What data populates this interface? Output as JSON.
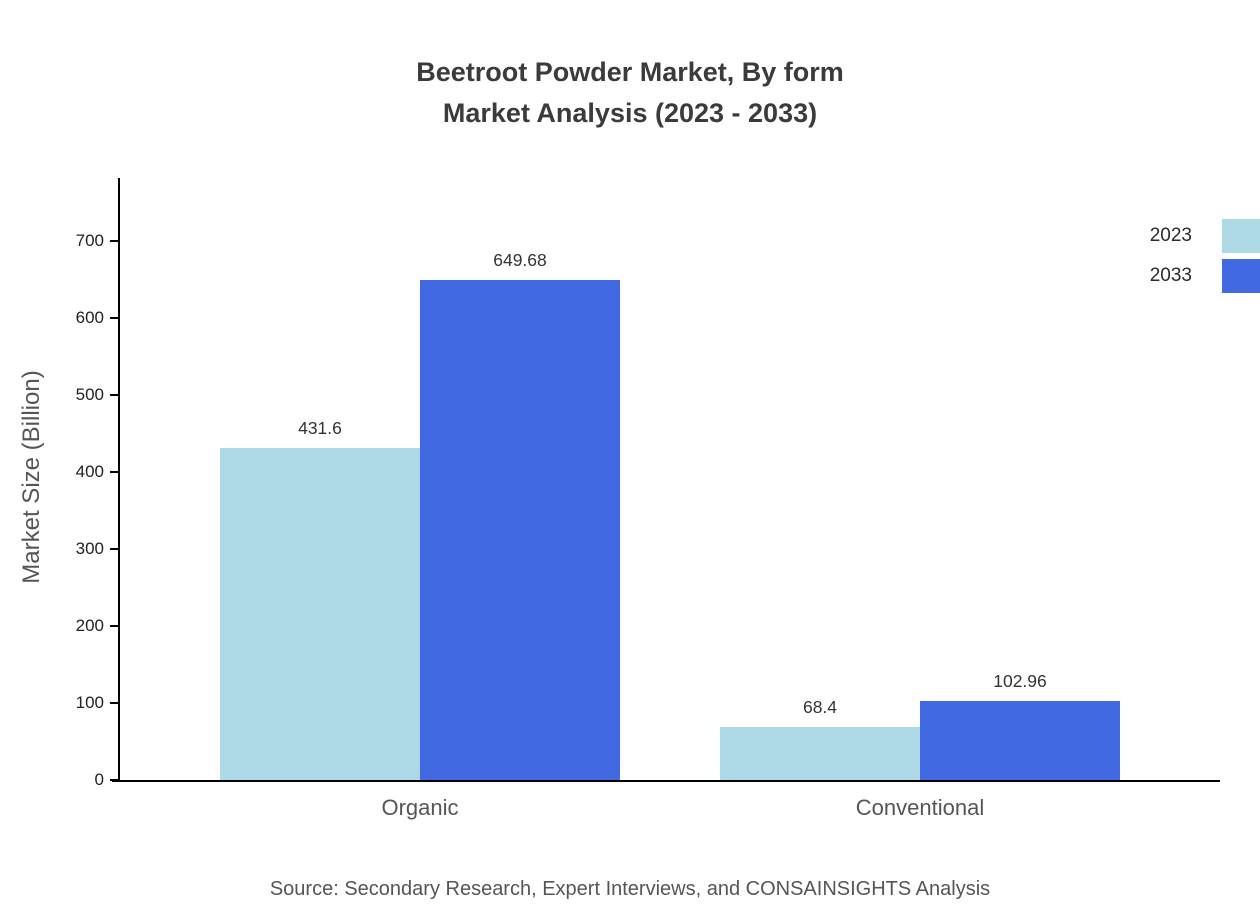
{
  "title": {
    "line1": "Beetroot Powder Market, By form",
    "line2": "Market Analysis (2023 - 2033)"
  },
  "source": "Source: Secondary Research, Expert Interviews, and CONSAINSIGHTS Analysis",
  "colors": {
    "series_2023": "#ADD8E6",
    "series_2033": "#4169E1",
    "axis": "#000000"
  },
  "chart_data": {
    "type": "bar",
    "title": "Beetroot Powder Market, By form — Market Analysis (2023 - 2033)",
    "categories": [
      "Organic",
      "Conventional"
    ],
    "series": [
      {
        "name": "2023",
        "color": "#ADD8E6",
        "values": [
          431.6,
          68.4
        ]
      },
      {
        "name": "2033",
        "color": "#4169E1",
        "values": [
          649.68,
          102.96
        ]
      }
    ],
    "xlabel": "",
    "ylabel": "Market Size (Billion)",
    "ylim": [
      0,
      780
    ],
    "yticks": [
      0,
      100,
      200,
      300,
      400,
      500,
      600,
      700
    ],
    "grid": false,
    "legend_position": "top-right"
  }
}
